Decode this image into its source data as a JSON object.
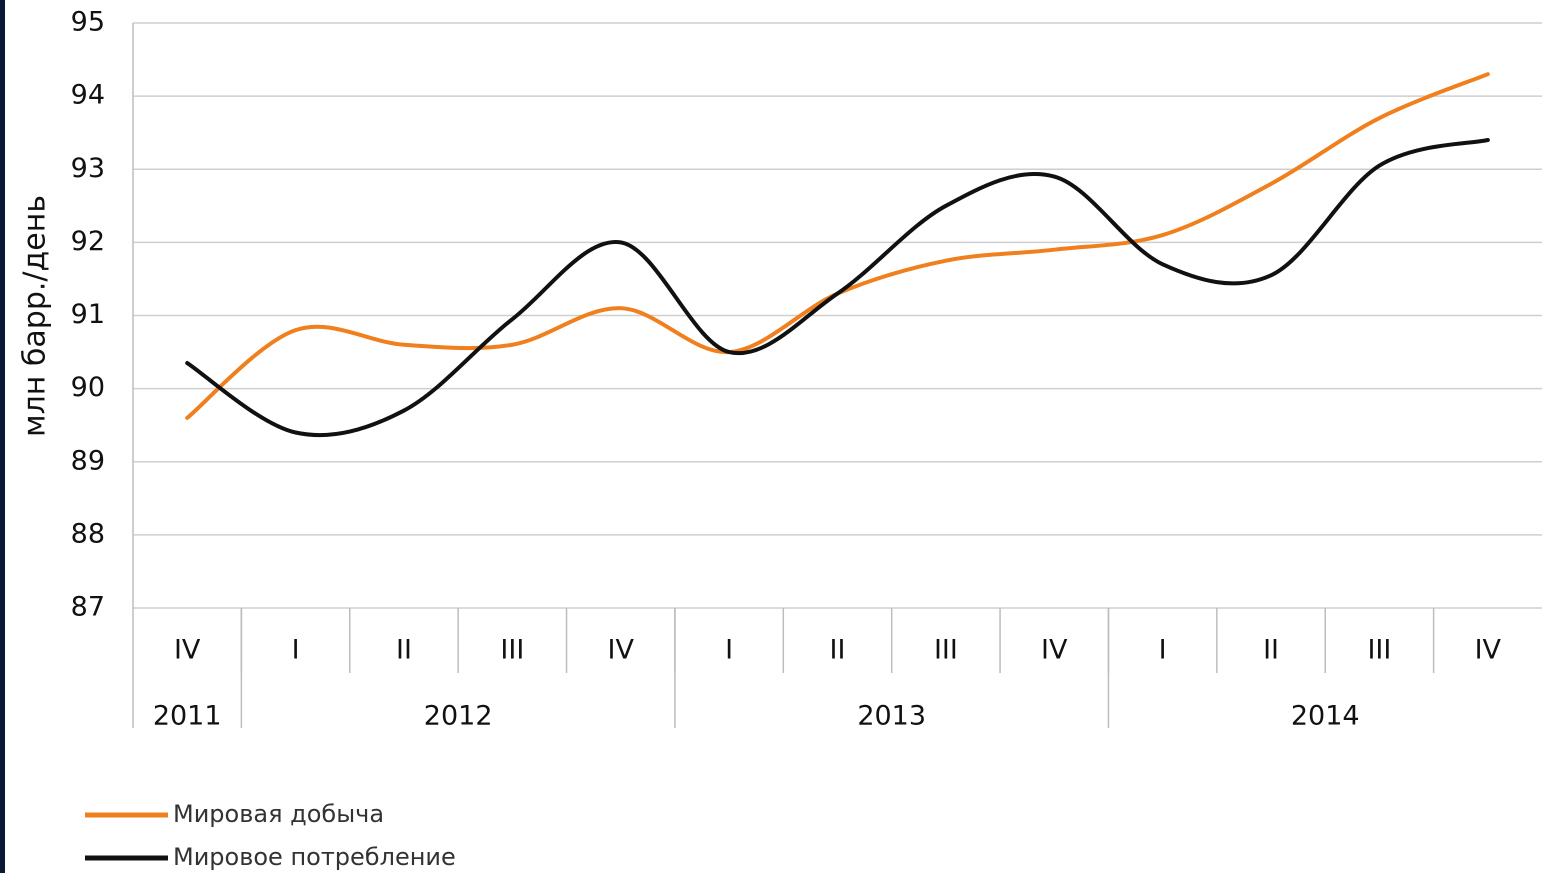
{
  "chart_data": {
    "type": "line",
    "y_label": "млн барр./день",
    "categories": [
      "IV",
      "I",
      "II",
      "III",
      "IV",
      "I",
      "II",
      "III",
      "IV",
      "I",
      "II",
      "III",
      "IV"
    ],
    "category_groups": [
      {
        "label": "2011",
        "count": 1
      },
      {
        "label": "2012",
        "count": 4
      },
      {
        "label": "2013",
        "count": 4
      },
      {
        "label": "2014",
        "count": 4
      }
    ],
    "series": [
      {
        "name": "Мировая добыча",
        "color": "#f07f1e",
        "values": [
          89.6,
          90.8,
          90.6,
          90.6,
          91.1,
          90.5,
          91.3,
          91.75,
          91.9,
          92.1,
          92.8,
          93.7,
          94.3
        ]
      },
      {
        "name": "Мировое потребление",
        "color": "#111111",
        "values": [
          90.35,
          89.4,
          89.7,
          90.95,
          92.0,
          90.5,
          91.3,
          92.5,
          92.9,
          91.7,
          91.55,
          93.05,
          93.4
        ]
      }
    ],
    "ylim": [
      87,
      95
    ],
    "yticks": [
      87,
      88,
      89,
      90,
      91,
      92,
      93,
      94,
      95
    ],
    "grid": true,
    "smooth": true
  }
}
